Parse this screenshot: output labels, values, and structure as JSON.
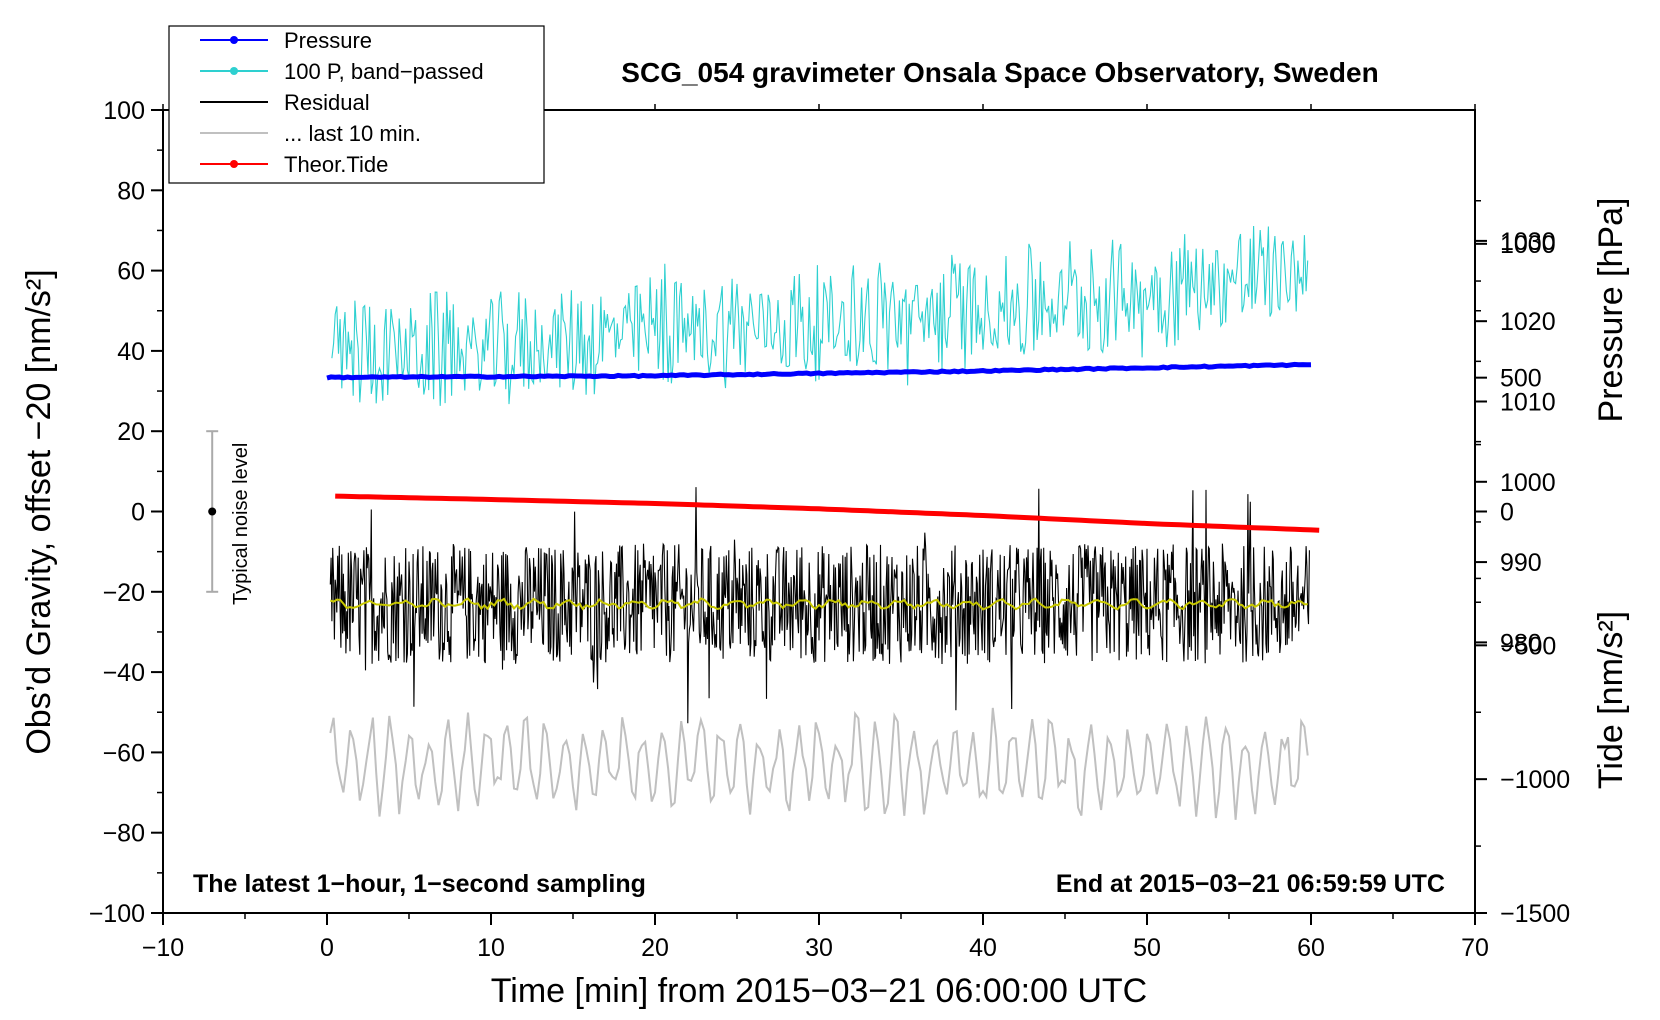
{
  "chart_data": {
    "type": "line",
    "title": "SCG_054 gravimeter Onsala Space Observatory, Sweden",
    "xlabel": "Time [min] from 2015−03−21 06:00:00 UTC",
    "ylabel_left": "Obs’d Gravity, offset −20 [nm/s²]",
    "ylabel_right_pressure": "Pressure [hPa]",
    "ylabel_right_tide": "Tide [nm/s²]",
    "xlim": [
      -10,
      70
    ],
    "ylim_left": [
      -100,
      100
    ],
    "x_ticks": [
      "−10",
      "0",
      "10",
      "20",
      "30",
      "40",
      "50",
      "60",
      "70"
    ],
    "x_tick_values": [
      -10,
      0,
      10,
      20,
      30,
      40,
      50,
      60,
      70
    ],
    "y_left_ticks": [
      "100",
      "80",
      "60",
      "40",
      "20",
      "0",
      "−20",
      "−40",
      "−60",
      "−80",
      "−100"
    ],
    "y_left_tick_values": [
      100,
      80,
      60,
      40,
      20,
      0,
      -20,
      -40,
      -60,
      -80,
      -100
    ],
    "pressure_axis": {
      "ticks": [
        "1030",
        "1020",
        "1010",
        "1000",
        "990",
        "980"
      ],
      "tick_values": [
        1030,
        1020,
        1010,
        1000,
        990,
        980
      ],
      "range": [
        946.3,
        1046.3
      ]
    },
    "tide_axis": {
      "ticks": [
        "1000",
        "500",
        "0",
        "−500",
        "−1000",
        "−1500"
      ],
      "tick_values": [
        1000,
        500,
        0,
        -500,
        -1000,
        -1500
      ],
      "range": [
        -1500,
        1500
      ]
    },
    "legend": [
      {
        "label": "Pressure",
        "color": "#0000ff",
        "marker": true
      },
      {
        "label": "100 P, band−passed",
        "color": "#2ed0d0",
        "marker": true
      },
      {
        "label": "Residual",
        "color": "#000000",
        "marker": false
      },
      {
        "label": "... last 10 min.",
        "color": "#c0c0c0",
        "marker": false
      },
      {
        "label": "Theor.Tide",
        "color": "#ff0000",
        "marker": true
      }
    ],
    "legend_position": "top-left",
    "series": [
      {
        "name": "Pressure",
        "axis": "pressure",
        "color": "#0000ff",
        "x": [
          0,
          10,
          20,
          30,
          40,
          50,
          60
        ],
        "values": [
          1013.0,
          1013.1,
          1013.2,
          1013.5,
          1013.8,
          1014.2,
          1014.6
        ]
      },
      {
        "name": "100 P, band−passed",
        "axis": "left",
        "color": "#2ed0d0",
        "x": [
          0,
          10,
          20,
          30,
          40,
          50,
          60
        ],
        "values": [
          40,
          40,
          45,
          47,
          50,
          55,
          60
        ],
        "spread": 14
      },
      {
        "name": "Residual",
        "axis": "left",
        "color": "#000000",
        "x": [
          0,
          10,
          20,
          30,
          40,
          50,
          60
        ],
        "values": [
          -23,
          -23,
          -23,
          -23,
          -23,
          -23,
          -23
        ],
        "spread": 15
      },
      {
        "name": "Residual smoothed",
        "axis": "left",
        "color": "#c8c800",
        "x": [
          0,
          10,
          20,
          30,
          40,
          50,
          60
        ],
        "values": [
          -23,
          -23,
          -23,
          -23,
          -23,
          -23,
          -23
        ]
      },
      {
        "name": "... last 10 min.",
        "axis": "left",
        "color": "#c0c0c0",
        "x": [
          0,
          10,
          20,
          30,
          40,
          50,
          60
        ],
        "values": [
          -63,
          -63,
          -63,
          -63,
          -63,
          -63,
          -63
        ],
        "spread": 13
      },
      {
        "name": "Theor.Tide",
        "axis": "tide",
        "color": "#ff0000",
        "x": [
          0,
          10,
          20,
          30,
          40,
          50,
          60.5
        ],
        "values": [
          58,
          45,
          30,
          10,
          -15,
          -45,
          -70
        ]
      }
    ],
    "noise_bar": {
      "label": "Typical noise level",
      "x": -7,
      "center": 0,
      "low": -20,
      "high": 20
    },
    "annotations": {
      "bottom_left": "The latest 1−hour, 1−second sampling",
      "bottom_right": "End at 2015−03−21 06:59:59 UTC"
    },
    "grid": false
  }
}
